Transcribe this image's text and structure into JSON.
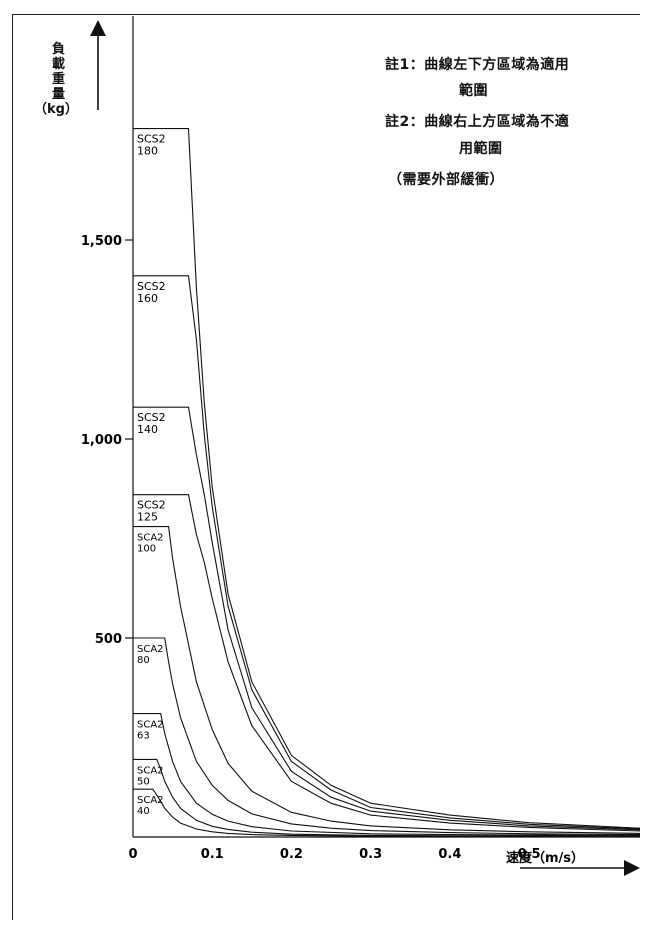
{
  "chart_data": {
    "type": "line",
    "title": "",
    "ylabel": "負載重量（kg）",
    "ylabel_lines": [
      "負",
      "載",
      "重",
      "量",
      "（kg）"
    ],
    "xlabel": "速度（m/s）",
    "xlim": [
      0,
      0.64
    ],
    "ylim": [
      0,
      1800
    ],
    "x_ticks": [
      0,
      0.1,
      0.2,
      0.3,
      0.4,
      0.5
    ],
    "x_tick_labels": [
      "0",
      "0.1",
      "0.2",
      "0.3",
      "0.4",
      "0.5"
    ],
    "y_ticks": [
      500,
      1000,
      1500
    ],
    "y_tick_labels": [
      "500",
      "1,000",
      "1,500"
    ],
    "grid": false,
    "notes": [
      [
        "註1：曲線左下方區域為適用",
        "範圍"
      ],
      [
        "註2：曲線右上方區域為不適",
        "用範圍"
      ],
      [
        "（需要外部緩衝）"
      ]
    ],
    "series": [
      {
        "name": "SCS2 180",
        "label_lines": [
          "SCS2",
          "180"
        ],
        "knee_x": 0.07,
        "max_load": 1780,
        "tail_load": 10,
        "points": [
          [
            0.07,
            1780
          ],
          [
            0.08,
            1380
          ],
          [
            0.09,
            1090
          ],
          [
            0.1,
            880
          ],
          [
            0.12,
            610
          ],
          [
            0.15,
            390
          ],
          [
            0.2,
            205
          ],
          [
            0.25,
            130
          ],
          [
            0.3,
            85
          ],
          [
            0.4,
            55
          ],
          [
            0.5,
            36
          ],
          [
            0.64,
            22
          ]
        ]
      },
      {
        "name": "SCS2 160",
        "label_lines": [
          "SCS2",
          "160"
        ],
        "knee_x": 0.07,
        "max_load": 1410,
        "tail_load": 10,
        "points": [
          [
            0.07,
            1410
          ],
          [
            0.08,
            1250
          ],
          [
            0.09,
            1010
          ],
          [
            0.1,
            830
          ],
          [
            0.12,
            580
          ],
          [
            0.15,
            370
          ],
          [
            0.2,
            190
          ],
          [
            0.25,
            118
          ],
          [
            0.3,
            74
          ],
          [
            0.4,
            48
          ],
          [
            0.5,
            32
          ],
          [
            0.64,
            20
          ]
        ]
      },
      {
        "name": "SCS2 140",
        "label_lines": [
          "SCS2",
          "140"
        ],
        "knee_x": 0.07,
        "max_load": 1080,
        "tail_load": 10,
        "points": [
          [
            0.07,
            1080
          ],
          [
            0.08,
            960
          ],
          [
            0.09,
            860
          ],
          [
            0.1,
            740
          ],
          [
            0.12,
            520
          ],
          [
            0.15,
            325
          ],
          [
            0.2,
            165
          ],
          [
            0.25,
            100
          ],
          [
            0.3,
            65
          ],
          [
            0.4,
            42
          ],
          [
            0.5,
            28
          ],
          [
            0.64,
            18
          ]
        ]
      },
      {
        "name": "SCS2 125",
        "label_lines": [
          "SCS2",
          "125"
        ],
        "knee_x": 0.07,
        "max_load": 860,
        "tail_load": 10,
        "points": [
          [
            0.07,
            860
          ],
          [
            0.08,
            760
          ],
          [
            0.09,
            690
          ],
          [
            0.1,
            600
          ],
          [
            0.12,
            440
          ],
          [
            0.15,
            280
          ],
          [
            0.2,
            140
          ],
          [
            0.25,
            85
          ],
          [
            0.3,
            55
          ],
          [
            0.4,
            35
          ],
          [
            0.5,
            24
          ],
          [
            0.64,
            15
          ]
        ]
      },
      {
        "name": "SCA2 100",
        "label_lines": [
          "SCA2",
          "100"
        ],
        "knee_x": 0.045,
        "max_load": 780,
        "tail_load": 10,
        "points": [
          [
            0.045,
            780
          ],
          [
            0.05,
            700
          ],
          [
            0.06,
            580
          ],
          [
            0.08,
            390
          ],
          [
            0.1,
            270
          ],
          [
            0.12,
            185
          ],
          [
            0.15,
            115
          ],
          [
            0.2,
            62
          ],
          [
            0.25,
            40
          ],
          [
            0.3,
            28
          ],
          [
            0.4,
            18
          ],
          [
            0.5,
            13
          ],
          [
            0.64,
            9
          ]
        ]
      },
      {
        "name": "SCA2 80",
        "label_lines": [
          "SCA2",
          "80"
        ],
        "knee_x": 0.04,
        "max_load": 500,
        "tail_load": 10,
        "points": [
          [
            0.04,
            500
          ],
          [
            0.045,
            440
          ],
          [
            0.05,
            385
          ],
          [
            0.06,
            300
          ],
          [
            0.08,
            190
          ],
          [
            0.1,
            130
          ],
          [
            0.12,
            92
          ],
          [
            0.15,
            58
          ],
          [
            0.2,
            33
          ],
          [
            0.25,
            22
          ],
          [
            0.3,
            16
          ],
          [
            0.4,
            11
          ],
          [
            0.5,
            8
          ],
          [
            0.64,
            6
          ]
        ]
      },
      {
        "name": "SCA2 63",
        "label_lines": [
          "SCA2",
          "63"
        ],
        "knee_x": 0.035,
        "max_load": 310,
        "tail_load": 10,
        "points": [
          [
            0.035,
            310
          ],
          [
            0.04,
            260
          ],
          [
            0.05,
            190
          ],
          [
            0.06,
            140
          ],
          [
            0.08,
            85
          ],
          [
            0.1,
            57
          ],
          [
            0.12,
            40
          ],
          [
            0.15,
            26
          ],
          [
            0.2,
            15
          ],
          [
            0.3,
            8
          ],
          [
            0.4,
            6
          ],
          [
            0.5,
            5
          ],
          [
            0.64,
            4
          ]
        ]
      },
      {
        "name": "SCA2 50",
        "label_lines": [
          "SCA2",
          "50"
        ],
        "knee_x": 0.03,
        "max_load": 195,
        "tail_load": 10,
        "points": [
          [
            0.03,
            195
          ],
          [
            0.035,
            170
          ],
          [
            0.04,
            140
          ],
          [
            0.05,
            100
          ],
          [
            0.06,
            72
          ],
          [
            0.08,
            42
          ],
          [
            0.1,
            27
          ],
          [
            0.12,
            19
          ],
          [
            0.15,
            12
          ],
          [
            0.2,
            7
          ],
          [
            0.3,
            4
          ],
          [
            0.4,
            3
          ],
          [
            0.64,
            2
          ]
        ]
      },
      {
        "name": "SCA2 40",
        "label_lines": [
          "SCA2",
          "40"
        ],
        "knee_x": 0.025,
        "max_load": 120,
        "tail_load": 10,
        "points": [
          [
            0.025,
            120
          ],
          [
            0.03,
            105
          ],
          [
            0.035,
            90
          ],
          [
            0.04,
            72
          ],
          [
            0.05,
            50
          ],
          [
            0.06,
            35
          ],
          [
            0.08,
            20
          ],
          [
            0.1,
            13
          ],
          [
            0.12,
            9
          ],
          [
            0.15,
            6
          ],
          [
            0.2,
            4
          ],
          [
            0.3,
            2
          ],
          [
            0.64,
            1
          ]
        ]
      }
    ]
  }
}
